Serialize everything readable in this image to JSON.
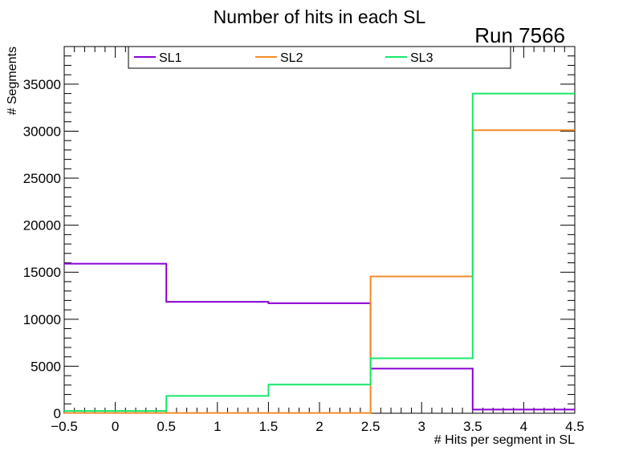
{
  "chart_data": {
    "type": "histogram",
    "title": "Number of hits in each SL",
    "annotation": "Run 7566",
    "xlabel": "# Hits per segment in SL",
    "ylabel": "# Segments",
    "xlim": [
      -0.5,
      4.5
    ],
    "ylim": [
      0,
      39000
    ],
    "x_ticks": [
      -0.5,
      0,
      0.5,
      1,
      1.5,
      2,
      2.5,
      3,
      3.5,
      4,
      4.5
    ],
    "x_tick_labels": [
      "−0.5",
      "0",
      "0.5",
      "1",
      "1.5",
      "2",
      "2.5",
      "3",
      "3.5",
      "4",
      "4.5"
    ],
    "y_ticks": [
      0,
      5000,
      10000,
      15000,
      20000,
      25000,
      30000,
      35000
    ],
    "y_tick_labels": [
      "0",
      "5000",
      "10000",
      "15000",
      "20000",
      "25000",
      "30000",
      "35000"
    ],
    "bin_edges": [
      -0.5,
      0.5,
      1.5,
      2.5,
      3.5,
      4.5
    ],
    "series": [
      {
        "name": "SL1",
        "color": "#8a00d4",
        "values": [
          15900,
          11850,
          11700,
          4750,
          400
        ]
      },
      {
        "name": "SL2",
        "color": "#f28c28",
        "values": [
          30,
          30,
          30,
          14550,
          30100
        ]
      },
      {
        "name": "SL3",
        "color": "#18e86a",
        "values": [
          250,
          1850,
          3050,
          5850,
          34000
        ]
      }
    ],
    "legend_placement": "top",
    "grid": false
  }
}
